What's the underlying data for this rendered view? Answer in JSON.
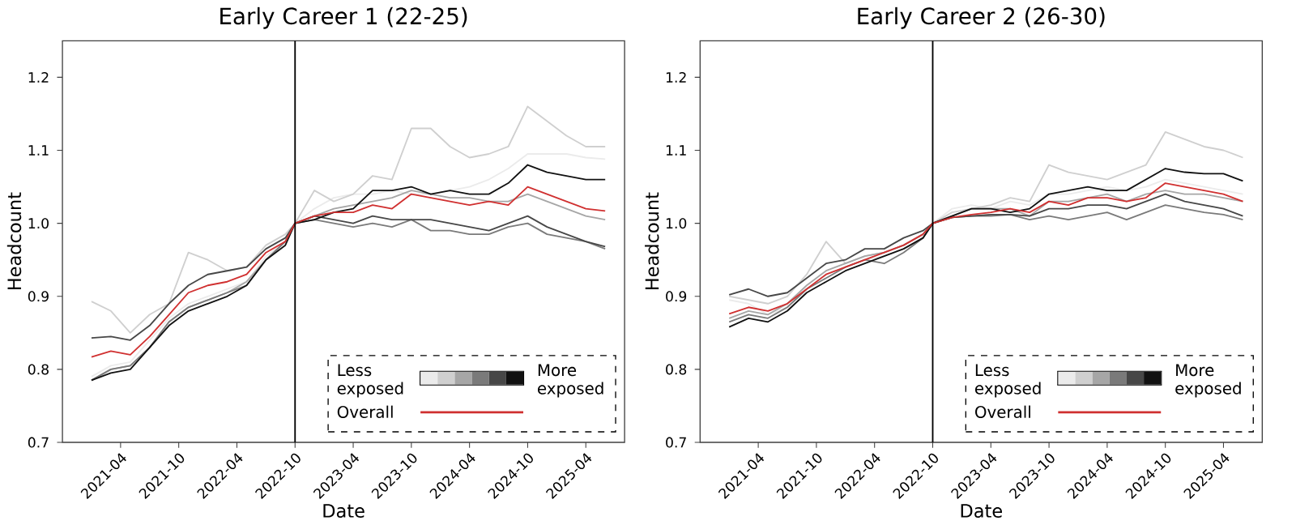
{
  "chart_data": [
    {
      "type": "line",
      "title": "Early Career 1 (22-25)",
      "xlabel": "Date",
      "ylabel": "Headcount",
      "x": [
        "2021-01",
        "2021-03",
        "2021-05",
        "2021-07",
        "2021-09",
        "2021-11",
        "2022-01",
        "2022-03",
        "2022-05",
        "2022-07",
        "2022-09",
        "2022-10",
        "2022-12",
        "2023-02",
        "2023-04",
        "2023-06",
        "2023-08",
        "2023-10",
        "2023-12",
        "2024-02",
        "2024-04",
        "2024-06",
        "2024-08",
        "2024-10",
        "2024-12",
        "2025-02",
        "2025-04",
        "2025-06"
      ],
      "xlim": [
        "2020-10",
        "2025-08"
      ],
      "xticks": [
        "2021-04",
        "2021-10",
        "2022-04",
        "2022-10",
        "2023-04",
        "2023-10",
        "2024-04",
        "2024-10",
        "2025-04"
      ],
      "ylim": [
        0.7,
        1.25
      ],
      "yticks": [
        0.7,
        0.8,
        0.9,
        {
          "value": 1.0,
          "label": "1.0"
        },
        1.1,
        1.2
      ],
      "ref_lines": [
        {
          "axis": "x",
          "value": "2022-10",
          "color": "#000000"
        }
      ],
      "legend": "bottom right",
      "annotations": [
        "Less exposed",
        "More exposed"
      ],
      "series": [
        {
          "color": "#ebebeb",
          "values": [
            0.79,
            0.805,
            0.81,
            0.84,
            0.87,
            0.89,
            0.9,
            0.91,
            0.92,
            0.955,
            0.975,
            1.0,
            1.02,
            1.035,
            1.04,
            1.04,
            1.045,
            1.04,
            1.04,
            1.045,
            1.05,
            1.06,
            1.075,
            1.095,
            1.095,
            1.095,
            1.09,
            1.088
          ]
        },
        {
          "color": "#cfcfcf",
          "values": [
            0.893,
            0.88,
            0.85,
            0.875,
            0.89,
            0.96,
            0.95,
            0.935,
            0.94,
            0.97,
            0.985,
            1.0,
            1.045,
            1.03,
            1.04,
            1.065,
            1.06,
            1.13,
            1.13,
            1.105,
            1.09,
            1.095,
            1.105,
            1.16,
            1.14,
            1.12,
            1.105,
            1.105
          ]
        },
        {
          "color": "#a6a6a6",
          "values": [
            0.785,
            0.8,
            0.805,
            0.83,
            0.865,
            0.885,
            0.895,
            0.905,
            0.92,
            0.95,
            0.975,
            1.0,
            1.01,
            1.02,
            1.025,
            1.03,
            1.035,
            1.045,
            1.04,
            1.035,
            1.035,
            1.03,
            1.03,
            1.04,
            1.03,
            1.02,
            1.01,
            1.005
          ]
        },
        {
          "color": "#7a7a7a",
          "values": [
            0.785,
            0.8,
            0.805,
            0.83,
            0.865,
            0.885,
            0.895,
            0.905,
            0.915,
            0.95,
            0.975,
            1.0,
            1.005,
            1.0,
            0.995,
            1.0,
            0.995,
            1.005,
            0.99,
            0.99,
            0.985,
            0.985,
            0.995,
            1.0,
            0.985,
            0.98,
            0.975,
            0.965
          ]
        },
        {
          "color": "#474747",
          "values": [
            0.843,
            0.845,
            0.84,
            0.86,
            0.89,
            0.915,
            0.93,
            0.935,
            0.94,
            0.965,
            0.98,
            1.0,
            1.01,
            1.005,
            1.0,
            1.01,
            1.005,
            1.005,
            1.005,
            1.0,
            0.995,
            0.99,
            1.0,
            1.01,
            0.995,
            0.985,
            0.975,
            0.968
          ]
        },
        {
          "color": "#111111",
          "values": [
            0.785,
            0.795,
            0.8,
            0.83,
            0.86,
            0.88,
            0.89,
            0.9,
            0.915,
            0.95,
            0.97,
            1.0,
            1.005,
            1.015,
            1.02,
            1.045,
            1.045,
            1.05,
            1.04,
            1.045,
            1.04,
            1.04,
            1.055,
            1.08,
            1.07,
            1.065,
            1.06,
            1.06
          ]
        },
        {
          "name": "Overall",
          "color": "#d03030",
          "values": [
            0.817,
            0.825,
            0.82,
            0.845,
            0.875,
            0.905,
            0.915,
            0.92,
            0.93,
            0.96,
            0.975,
            1.0,
            1.01,
            1.015,
            1.015,
            1.025,
            1.02,
            1.04,
            1.035,
            1.03,
            1.025,
            1.03,
            1.025,
            1.05,
            1.04,
            1.03,
            1.02,
            1.017
          ]
        }
      ]
    },
    {
      "type": "line",
      "title": "Early Career 2 (26-30)",
      "xlabel": "Date",
      "ylabel": "Headcount",
      "x": [
        "2021-01",
        "2021-03",
        "2021-05",
        "2021-07",
        "2021-09",
        "2021-11",
        "2022-01",
        "2022-03",
        "2022-05",
        "2022-07",
        "2022-09",
        "2022-10",
        "2022-12",
        "2023-02",
        "2023-04",
        "2023-06",
        "2023-08",
        "2023-10",
        "2023-12",
        "2024-02",
        "2024-04",
        "2024-06",
        "2024-08",
        "2024-10",
        "2024-12",
        "2025-02",
        "2025-04",
        "2025-06"
      ],
      "xlim": [
        "2020-10",
        "2025-08"
      ],
      "xticks": [
        "2021-04",
        "2021-10",
        "2022-04",
        "2022-10",
        "2023-04",
        "2023-10",
        "2024-04",
        "2024-10",
        "2025-04"
      ],
      "ylim": [
        0.7,
        1.25
      ],
      "yticks": [
        0.7,
        0.8,
        0.9,
        {
          "value": 1.0,
          "label": "1.0"
        },
        1.1,
        1.2
      ],
      "ref_lines": [
        {
          "axis": "x",
          "value": "2022-10",
          "color": "#000000"
        }
      ],
      "legend": "bottom right",
      "annotations": [
        "Less exposed",
        "More exposed"
      ],
      "series": [
        {
          "color": "#ebebeb",
          "values": [
            0.895,
            0.89,
            0.875,
            0.885,
            0.91,
            0.93,
            0.94,
            0.95,
            0.955,
            0.965,
            0.98,
            1.0,
            1.02,
            1.025,
            1.02,
            1.03,
            1.025,
            1.04,
            1.04,
            1.045,
            1.05,
            1.045,
            1.05,
            1.06,
            1.055,
            1.05,
            1.045,
            1.04
          ]
        },
        {
          "color": "#cfcfcf",
          "values": [
            0.9,
            0.895,
            0.89,
            0.9,
            0.93,
            0.975,
            0.945,
            0.955,
            0.96,
            0.97,
            0.985,
            1.0,
            1.015,
            1.02,
            1.025,
            1.035,
            1.03,
            1.08,
            1.07,
            1.065,
            1.06,
            1.07,
            1.08,
            1.125,
            1.115,
            1.105,
            1.1,
            1.09
          ]
        },
        {
          "color": "#a6a6a6",
          "values": [
            0.87,
            0.88,
            0.875,
            0.89,
            0.915,
            0.935,
            0.945,
            0.955,
            0.96,
            0.97,
            0.985,
            1.0,
            1.01,
            1.02,
            1.02,
            1.02,
            1.01,
            1.03,
            1.03,
            1.035,
            1.04,
            1.03,
            1.04,
            1.045,
            1.04,
            1.04,
            1.035,
            1.03
          ]
        },
        {
          "color": "#7a7a7a",
          "values": [
            0.865,
            0.875,
            0.87,
            0.885,
            0.91,
            0.925,
            0.94,
            0.95,
            0.945,
            0.96,
            0.98,
            1.0,
            1.008,
            1.01,
            1.01,
            1.012,
            1.005,
            1.01,
            1.005,
            1.01,
            1.015,
            1.005,
            1.015,
            1.025,
            1.02,
            1.015,
            1.012,
            1.005
          ]
        },
        {
          "color": "#474747",
          "values": [
            0.902,
            0.91,
            0.9,
            0.905,
            0.925,
            0.945,
            0.95,
            0.965,
            0.965,
            0.98,
            0.99,
            1.0,
            1.008,
            1.01,
            1.012,
            1.012,
            1.01,
            1.02,
            1.02,
            1.025,
            1.025,
            1.02,
            1.03,
            1.04,
            1.03,
            1.025,
            1.02,
            1.01
          ]
        },
        {
          "color": "#111111",
          "values": [
            0.858,
            0.87,
            0.865,
            0.88,
            0.905,
            0.92,
            0.935,
            0.945,
            0.955,
            0.965,
            0.98,
            1.0,
            1.01,
            1.02,
            1.02,
            1.015,
            1.02,
            1.04,
            1.045,
            1.05,
            1.045,
            1.045,
            1.06,
            1.075,
            1.07,
            1.068,
            1.068,
            1.058
          ]
        },
        {
          "name": "Overall",
          "color": "#d03030",
          "values": [
            0.876,
            0.885,
            0.88,
            0.89,
            0.91,
            0.93,
            0.94,
            0.95,
            0.96,
            0.97,
            0.985,
            1.0,
            1.008,
            1.012,
            1.015,
            1.02,
            1.015,
            1.03,
            1.025,
            1.035,
            1.035,
            1.03,
            1.035,
            1.055,
            1.05,
            1.045,
            1.04,
            1.03
          ]
        }
      ]
    }
  ]
}
